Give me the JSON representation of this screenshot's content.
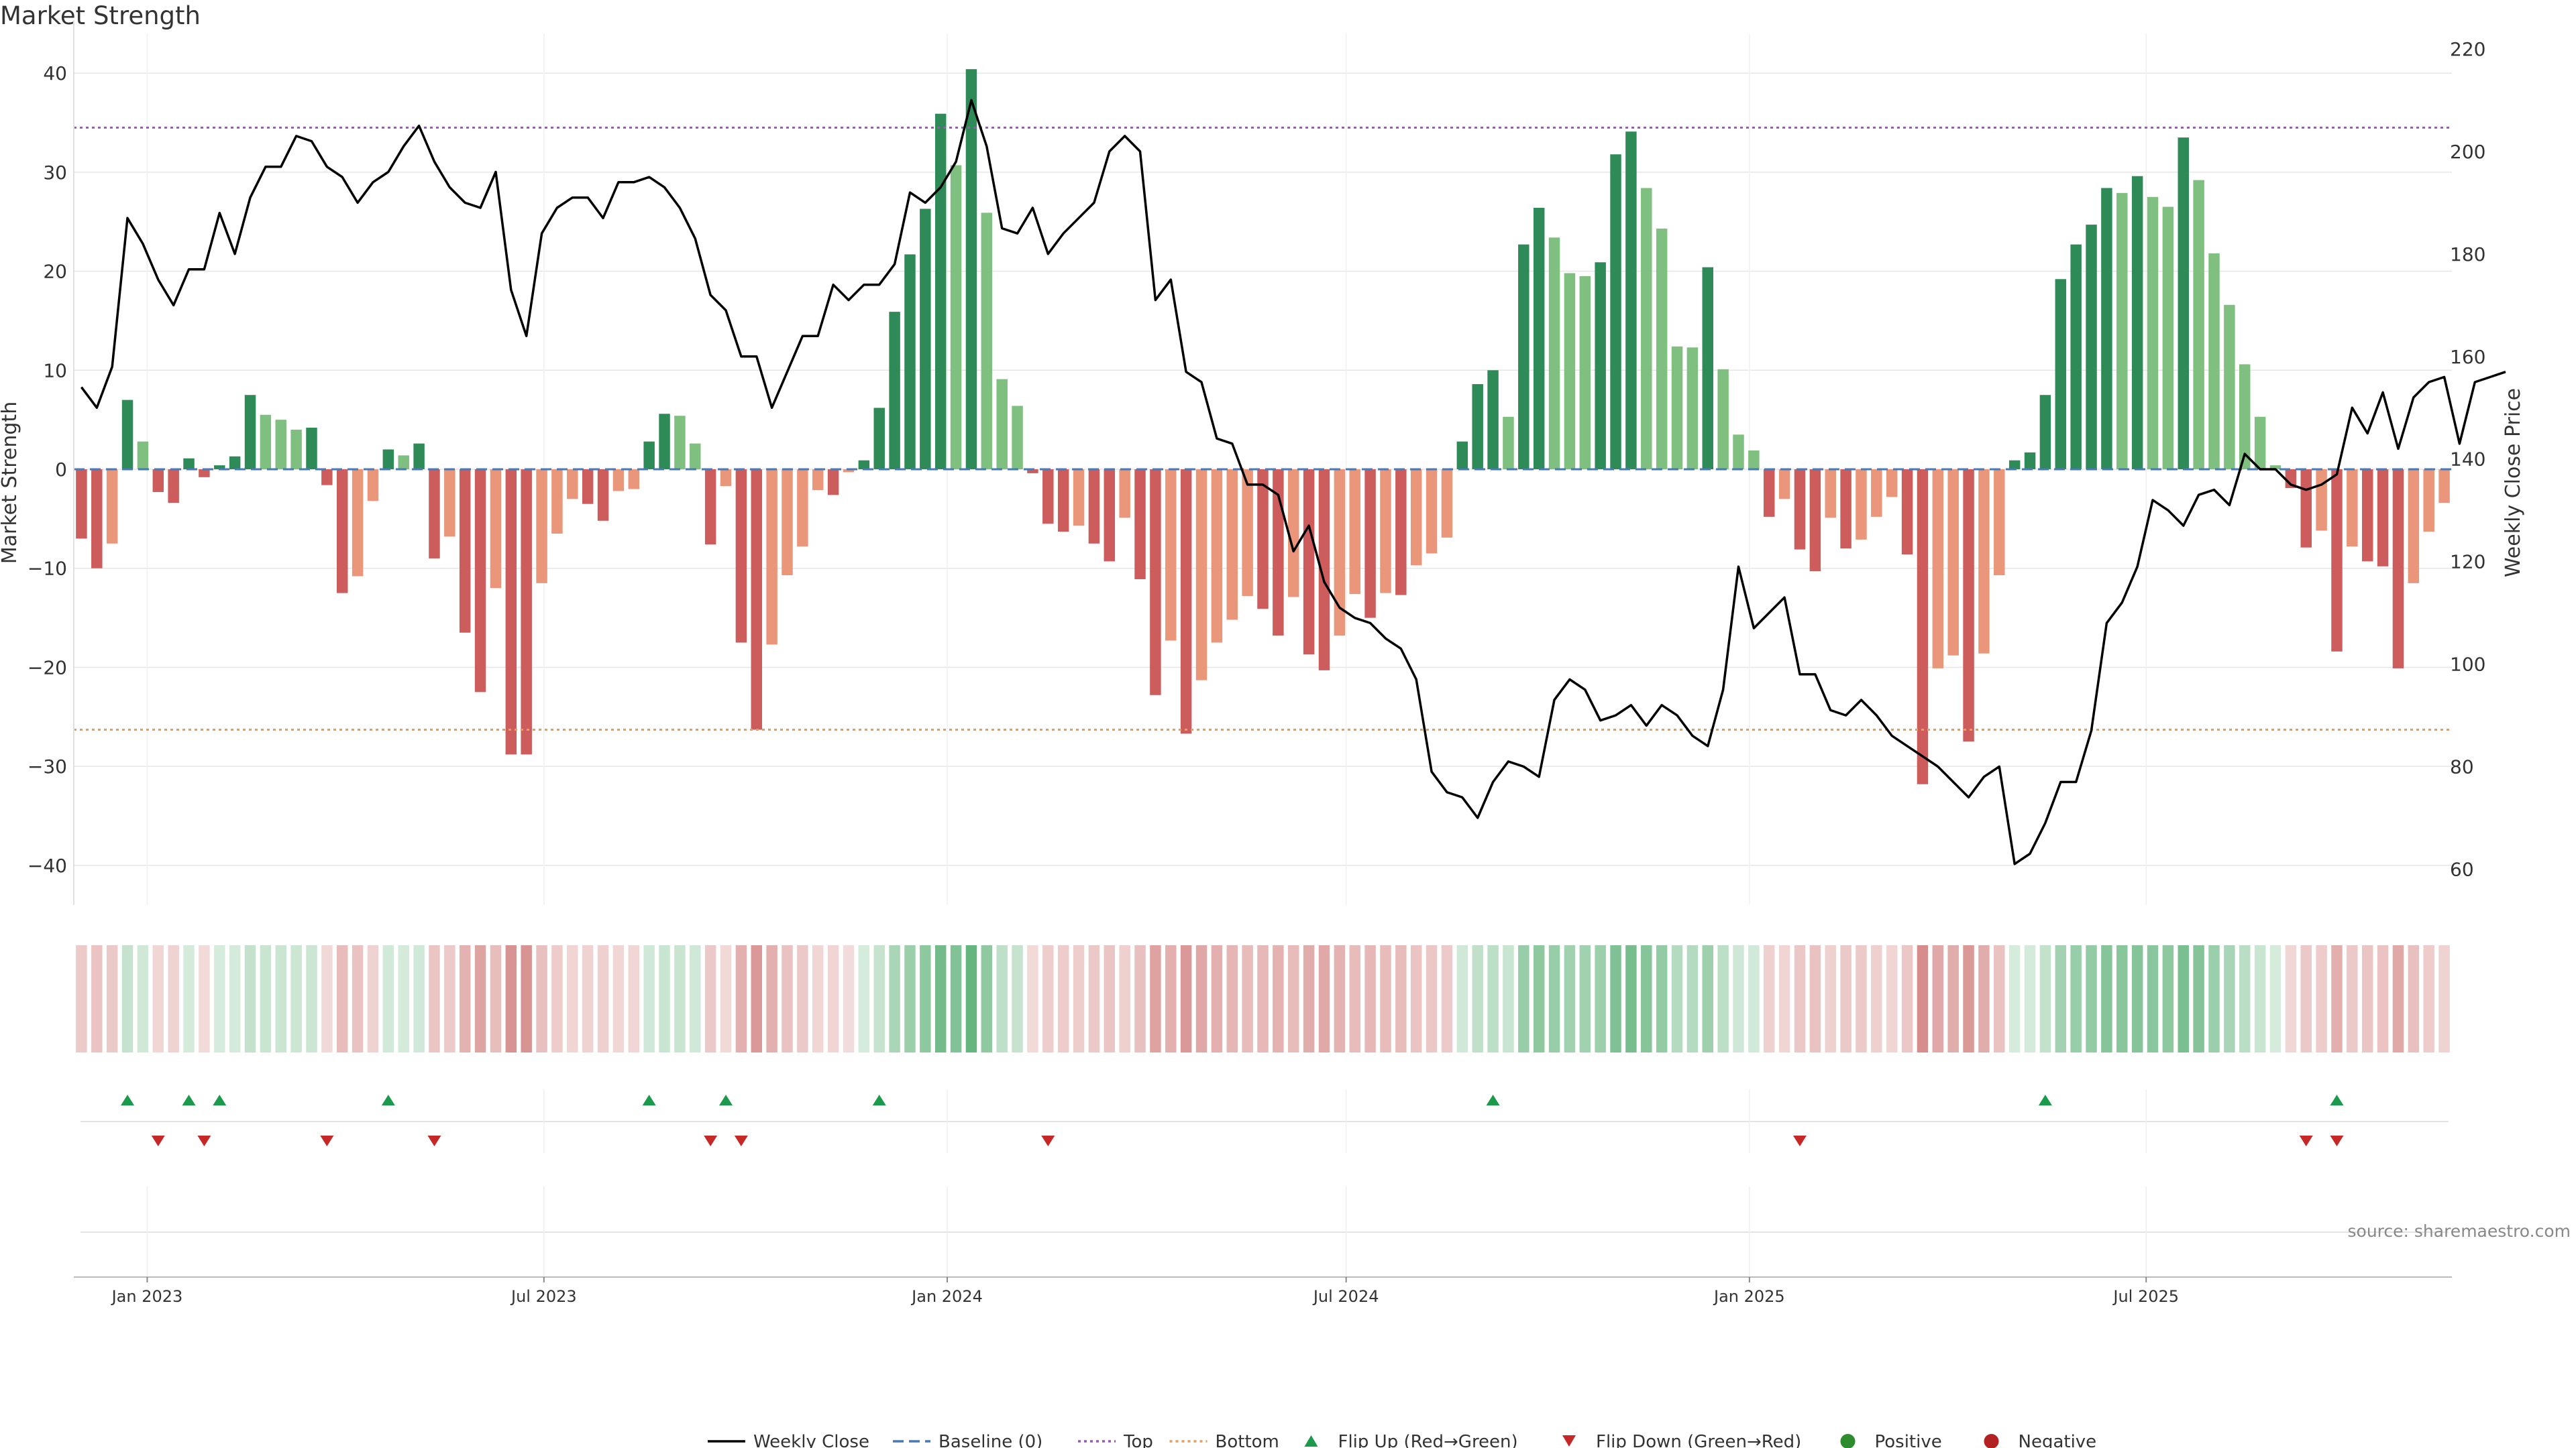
{
  "title": "Market Strength",
  "source": "source: sharemaestro.com",
  "colors": {
    "up_strong": "#2e8b57",
    "up_light": "#7fbf7f",
    "down_strong": "#cd5c5c",
    "down_light": "#e9967a",
    "price_line": "#000000",
    "top_line": "#9b59b6",
    "bottom_line": "#e0a060",
    "baseline": "#4a7ab5",
    "flip_up": "#1a9a4a",
    "flip_down": "#c62828",
    "positive": "#2e8b2e",
    "negative": "#b22222"
  },
  "chart_data": {
    "type": "bar",
    "title": "Market Strength",
    "ylabel": "Market Strength",
    "y2label": "Weekly Close Price",
    "ylim": [
      -44,
      44
    ],
    "y2lim": [
      53,
      223
    ],
    "yticks": [
      -40,
      -30,
      -20,
      -10,
      0,
      10,
      20,
      30,
      40
    ],
    "y2ticks": [
      60,
      80,
      100,
      120,
      140,
      160,
      180,
      200,
      220
    ],
    "xticks": [
      "Jan 2023",
      "Jul 2023",
      "Jan 2024",
      "Jul 2024",
      "Jan 2025",
      "Jul 2025"
    ],
    "start_date": "2022-12-02",
    "grid": true,
    "top_threshold": 34.5,
    "bottom_threshold": -26.3,
    "strength": [
      -7,
      -10,
      -7.5,
      7,
      2.8,
      -2.3,
      -3.4,
      1.1,
      -0.8,
      0.4,
      1.3,
      7.5,
      5.5,
      5,
      4,
      4.2,
      -1.6,
      -12.5,
      -10.8,
      -3.2,
      2,
      1.4,
      2.6,
      -9,
      -6.8,
      -16.5,
      -22.5,
      -12,
      -28.8,
      -28.8,
      -11.5,
      -6.5,
      -3,
      -3.5,
      -5.2,
      -2.2,
      -2,
      2.8,
      5.6,
      5.4,
      2.6,
      -7.6,
      -1.7,
      -17.5,
      -26.3,
      -17.7,
      -10.7,
      -7.8,
      -2.1,
      -2.6,
      -0.3,
      0.9,
      6.2,
      15.9,
      21.7,
      26.3,
      35.9,
      30.7,
      40.4,
      25.9,
      9.1,
      6.4,
      -0.4,
      -5.5,
      -6.3,
      -5.7,
      -7.5,
      -9.3,
      -4.9,
      -11.1,
      -22.8,
      -17.3,
      -26.7,
      -21.3,
      -17.5,
      -15.2,
      -12.8,
      -14.1,
      -16.8,
      -12.9,
      -18.7,
      -20.3,
      -16.8,
      -12.6,
      -15,
      -12.5,
      -12.7,
      -9.7,
      -8.5,
      -6.9,
      2.8,
      8.6,
      10,
      5.3,
      22.7,
      26.4,
      23.4,
      19.8,
      19.5,
      20.9,
      31.8,
      34.1,
      28.4,
      24.3,
      12.4,
      12.3,
      20.4,
      10.1,
      3.5,
      1.9,
      -4.8,
      -3,
      -8.1,
      -10.3,
      -4.9,
      -8,
      -7.1,
      -4.8,
      -2.8,
      -8.6,
      -31.8,
      -20.1,
      -18.8,
      -27.5,
      -18.6,
      -10.7,
      0.9,
      1.7,
      7.5,
      19.2,
      22.7,
      24.7,
      28.4,
      27.9,
      29.6,
      27.5,
      26.5,
      33.5,
      29.2,
      21.8,
      16.6,
      10.6,
      5.3,
      0.4,
      -1.9,
      -7.9,
      -6.2,
      -18.4,
      -7.8,
      -9.3,
      -9.8,
      -20.1,
      -11.5,
      -6.3,
      -3.4
    ],
    "weekly_close": [
      154,
      150,
      158,
      187,
      182,
      175,
      170,
      177,
      177,
      188,
      180,
      191,
      197,
      197,
      203,
      202,
      197,
      195,
      190,
      194,
      196,
      201,
      205,
      198,
      193,
      190,
      189,
      196,
      173,
      164,
      184,
      189,
      191,
      191,
      187,
      194,
      194,
      195,
      193,
      189,
      183,
      172,
      169,
      160,
      160,
      150,
      157,
      164,
      164,
      174,
      171,
      174,
      174,
      178,
      192,
      190,
      193,
      198,
      210,
      201,
      185,
      184,
      189,
      180,
      184,
      187,
      190,
      200,
      203,
      200,
      171,
      175,
      157,
      155,
      144,
      143,
      135,
      135,
      133,
      122,
      127,
      116,
      111,
      109,
      108,
      105,
      103,
      97,
      79,
      75,
      74,
      70,
      77,
      81,
      80,
      78,
      93,
      97,
      95,
      89,
      90,
      92,
      88,
      92,
      90,
      86,
      84,
      95,
      119,
      107,
      110,
      113,
      98,
      98,
      91,
      90,
      93,
      90,
      86,
      84,
      82,
      80,
      77,
      74,
      78,
      80,
      61,
      63,
      69,
      77,
      77,
      87,
      108,
      112,
      119,
      132,
      130,
      127,
      133,
      134,
      131,
      141,
      138,
      138,
      135,
      134,
      135,
      137,
      150,
      145,
      153,
      142,
      152,
      155,
      156,
      143,
      155,
      156,
      157
    ],
    "flip_up_index": [
      3,
      7,
      9,
      20,
      37,
      42,
      52,
      92,
      128,
      147
    ],
    "flip_down_index": [
      5,
      8,
      16,
      23,
      41,
      43,
      63,
      112,
      145,
      147
    ],
    "legend_position": "bottom-center"
  },
  "legend": [
    {
      "label": "Weekly Close",
      "symbol": "line"
    },
    {
      "label": "Baseline (0)",
      "symbol": "dash"
    },
    {
      "label": "Top",
      "symbol": "dot-line-top"
    },
    {
      "label": "Bottom",
      "symbol": "dot-line-bottom"
    },
    {
      "label": "Flip Up (Red→Green)",
      "symbol": "triangle-up"
    },
    {
      "label": "Flip Down (Green→Red)",
      "symbol": "triangle-down"
    },
    {
      "label": "Positive",
      "symbol": "circle-positive"
    },
    {
      "label": "Negative",
      "symbol": "circle-negative"
    }
  ]
}
